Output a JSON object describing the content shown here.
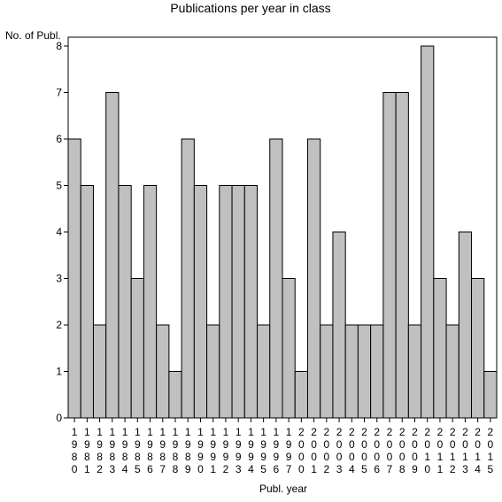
{
  "chart_data": {
    "type": "bar",
    "title": "Publications per year in class",
    "ylabel": "No. of Publ.",
    "xlabel": "Publ. year",
    "categories": [
      "1980",
      "1981",
      "1982",
      "1983",
      "1984",
      "1985",
      "1986",
      "1987",
      "1988",
      "1989",
      "1990",
      "1991",
      "1992",
      "1993",
      "1994",
      "1995",
      "1996",
      "1997",
      "2000",
      "2001",
      "2002",
      "2003",
      "2004",
      "2005",
      "2006",
      "2007",
      "2008",
      "2009",
      "2010",
      "2011",
      "2012",
      "2013",
      "2014",
      "2015"
    ],
    "values": [
      6,
      5,
      2,
      7,
      5,
      3,
      5,
      2,
      1,
      6,
      5,
      2,
      5,
      5,
      5,
      2,
      6,
      3,
      1,
      6,
      2,
      4,
      2,
      2,
      2,
      7,
      7,
      2,
      8,
      3,
      2,
      4,
      3,
      1
    ],
    "yticks": [
      0,
      1,
      2,
      3,
      4,
      5,
      6,
      7,
      8
    ],
    "ylim": [
      0,
      8
    ],
    "grid": false,
    "bar_color": "#c0c0c0",
    "bar_edge_color": "#000000"
  }
}
